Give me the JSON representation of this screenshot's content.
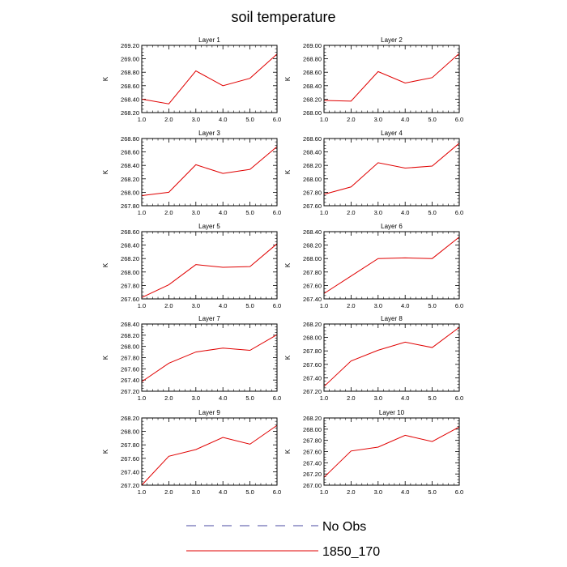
{
  "title": "soil temperature",
  "chart_data": {
    "type": "line",
    "title": "soil temperature",
    "ylabel": "K",
    "x": [
      1.0,
      2.0,
      3.0,
      4.0,
      5.0,
      6.0
    ],
    "x_ticks": [
      "1.0",
      "2.0",
      "3.0",
      "4.0",
      "5.0",
      "6.0"
    ],
    "xlim": [
      1.0,
      6.0
    ],
    "series_color": "#e00000",
    "panels": [
      {
        "title": "Layer 1",
        "ylim": [
          268.2,
          269.2
        ],
        "yticks": [
          "268.20",
          "268.40",
          "268.60",
          "268.80",
          "269.00",
          "269.20"
        ],
        "values": [
          268.4,
          268.33,
          268.82,
          268.6,
          268.71,
          269.07
        ]
      },
      {
        "title": "Layer 2",
        "ylim": [
          268.0,
          269.0
        ],
        "yticks": [
          "268.00",
          "268.20",
          "268.40",
          "268.60",
          "268.80",
          "269.00"
        ],
        "values": [
          268.18,
          268.17,
          268.61,
          268.44,
          268.52,
          268.88
        ]
      },
      {
        "title": "Layer 3",
        "ylim": [
          267.8,
          268.8
        ],
        "yticks": [
          "267.80",
          "268.00",
          "268.20",
          "268.40",
          "268.60",
          "268.80"
        ],
        "values": [
          267.95,
          268.0,
          268.41,
          268.28,
          268.34,
          268.68
        ]
      },
      {
        "title": "Layer 4",
        "ylim": [
          267.6,
          268.6
        ],
        "yticks": [
          "267.60",
          "267.80",
          "268.00",
          "268.20",
          "268.40",
          "268.60"
        ],
        "values": [
          267.77,
          267.88,
          268.24,
          268.16,
          268.19,
          268.53
        ]
      },
      {
        "title": "Layer 5",
        "ylim": [
          267.6,
          268.6
        ],
        "yticks": [
          "267.60",
          "267.80",
          "268.00",
          "268.20",
          "268.40",
          "268.60"
        ],
        "values": [
          267.62,
          267.81,
          268.11,
          268.07,
          268.08,
          268.42
        ]
      },
      {
        "title": "Layer 6",
        "ylim": [
          267.4,
          268.4
        ],
        "yticks": [
          "267.40",
          "267.60",
          "267.80",
          "268.00",
          "268.20",
          "268.40"
        ],
        "values": [
          267.48,
          267.74,
          268.0,
          268.01,
          268.0,
          268.32
        ]
      },
      {
        "title": "Layer 7",
        "ylim": [
          267.2,
          268.4
        ],
        "yticks": [
          "267.20",
          "267.40",
          "267.60",
          "267.80",
          "268.00",
          "268.20",
          "268.40"
        ],
        "values": [
          267.37,
          267.7,
          267.9,
          267.97,
          267.93,
          268.21
        ]
      },
      {
        "title": "Layer 8",
        "ylim": [
          267.2,
          268.2
        ],
        "yticks": [
          "267.20",
          "267.40",
          "267.60",
          "267.80",
          "268.00",
          "268.20"
        ],
        "values": [
          267.27,
          267.65,
          267.81,
          267.93,
          267.85,
          268.15
        ]
      },
      {
        "title": "Layer 9",
        "ylim": [
          267.2,
          268.2
        ],
        "yticks": [
          "267.20",
          "267.40",
          "267.60",
          "267.80",
          "268.00",
          "268.20"
        ],
        "values": [
          267.2,
          267.63,
          267.73,
          267.91,
          267.81,
          268.09
        ]
      },
      {
        "title": "Layer 10",
        "ylim": [
          267.0,
          268.2
        ],
        "yticks": [
          "267.00",
          "267.20",
          "267.40",
          "267.60",
          "267.80",
          "268.00",
          "268.20"
        ],
        "values": [
          267.14,
          267.61,
          267.68,
          267.89,
          267.78,
          268.04
        ]
      }
    ],
    "legend": [
      {
        "label": "No Obs",
        "color": "#4a4aa0",
        "style": "dashed"
      },
      {
        "label": "1850_170",
        "color": "#e00000",
        "style": "solid"
      }
    ]
  }
}
